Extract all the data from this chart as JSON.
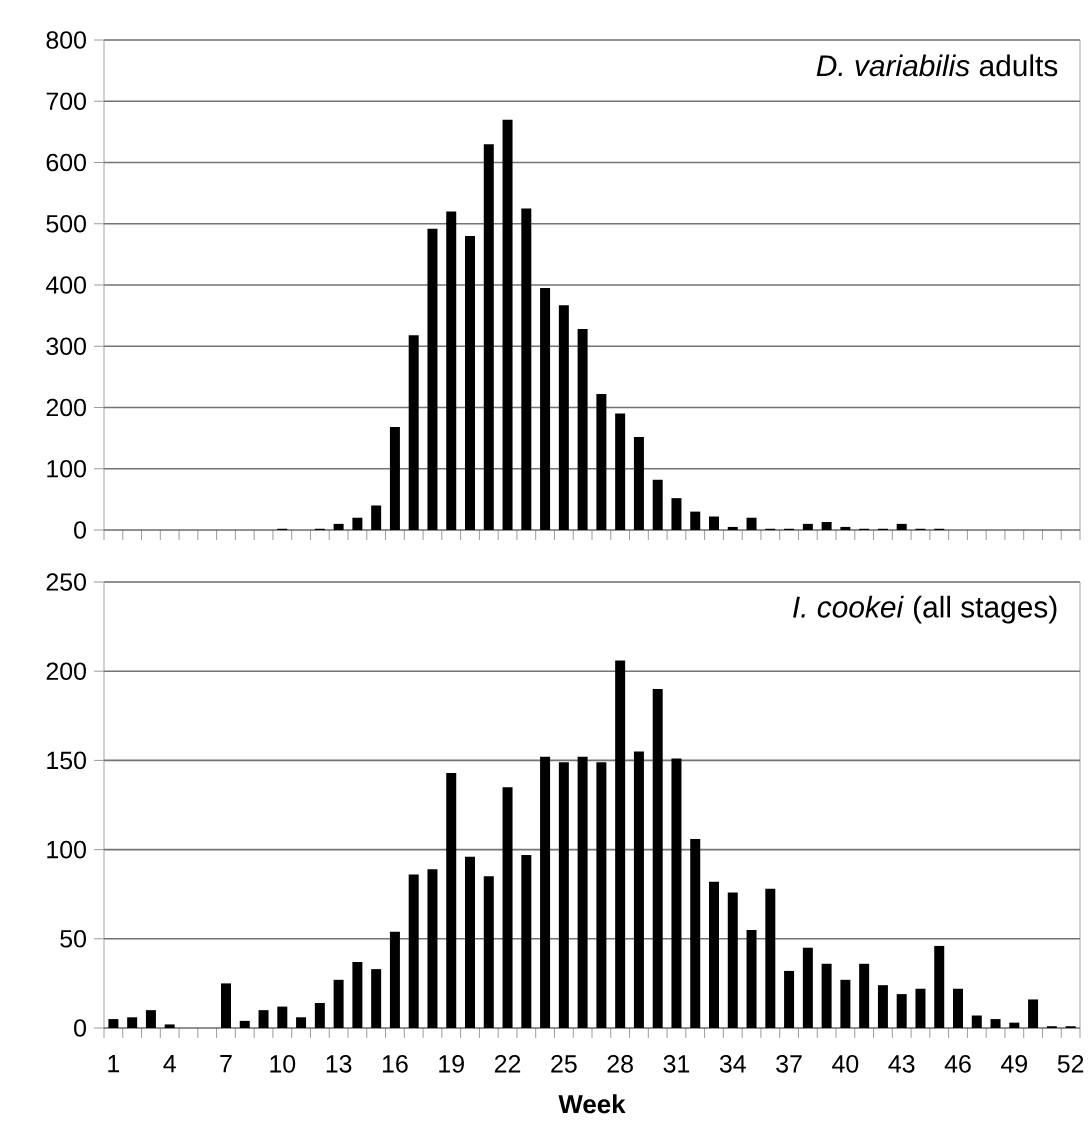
{
  "chart_data": [
    {
      "type": "bar",
      "title": "*D. variabilis* adults",
      "color": "#000000",
      "grid": "y",
      "tick_labels": "y",
      "ylim": [
        0,
        800
      ],
      "yticks": [
        0,
        100,
        200,
        300,
        400,
        500,
        600,
        700,
        800
      ],
      "categories": [
        "1",
        null,
        null,
        "4",
        null,
        null,
        "7",
        null,
        null,
        "10",
        null,
        null,
        "13",
        null,
        null,
        "16",
        null,
        null,
        "19",
        null,
        null,
        "22",
        null,
        null,
        "25",
        null,
        null,
        "28",
        null,
        null,
        "31",
        null,
        null,
        "34",
        null,
        null,
        "37",
        null,
        null,
        "40",
        null,
        null,
        "43",
        null,
        null,
        "46",
        null,
        null,
        "49",
        null,
        null,
        "52"
      ],
      "values": [
        0,
        0,
        0,
        0,
        0,
        0,
        0,
        0,
        0,
        2,
        0,
        2,
        10,
        20,
        40,
        168,
        318,
        492,
        520,
        480,
        630,
        670,
        525,
        395,
        367,
        328,
        222,
        190,
        152,
        82,
        52,
        30,
        22,
        5,
        20,
        2,
        2,
        10,
        13,
        5,
        2,
        2,
        10,
        2,
        2,
        0,
        0,
        0,
        0,
        0,
        0,
        0
      ]
    },
    {
      "type": "bar",
      "title": "*I. cookei* (all stages)",
      "xlabel": "**Week**",
      "color": "#000000",
      "grid": "y",
      "ylim": [
        0,
        250
      ],
      "yticks": [
        0,
        50,
        100,
        150,
        200,
        250
      ],
      "categories": [
        "1",
        null,
        null,
        "4",
        null,
        null,
        "7",
        null,
        null,
        "10",
        null,
        null,
        "13",
        null,
        null,
        "16",
        null,
        null,
        "19",
        null,
        null,
        "22",
        null,
        null,
        "25",
        null,
        null,
        "28",
        null,
        null,
        "31",
        null,
        null,
        "34",
        null,
        null,
        "37",
        null,
        null,
        "40",
        null,
        null,
        "43",
        null,
        null,
        "46",
        null,
        null,
        "49",
        null,
        null,
        "52"
      ],
      "values": [
        5,
        6,
        10,
        2,
        0,
        0,
        25,
        4,
        10,
        12,
        6,
        14,
        27,
        37,
        33,
        54,
        86,
        89,
        143,
        96,
        85,
        135,
        97,
        152,
        149,
        152,
        149,
        206,
        155,
        190,
        151,
        106,
        82,
        76,
        55,
        78,
        32,
        45,
        36,
        27,
        36,
        24,
        19,
        22,
        46,
        22,
        7,
        5,
        3,
        16,
        1,
        1
      ]
    }
  ]
}
